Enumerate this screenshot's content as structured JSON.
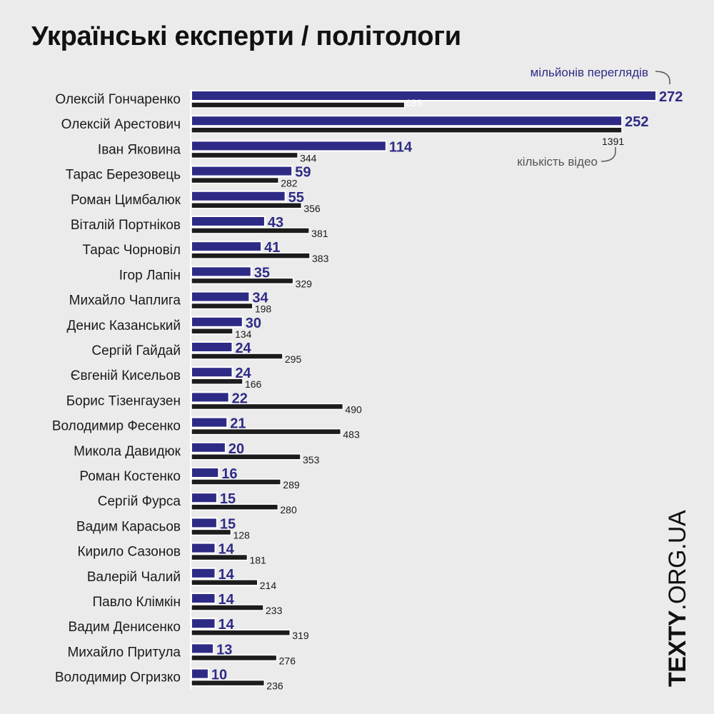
{
  "title": "Українські експерти / політологи",
  "brand": {
    "bold": "TEXTY",
    "rest": ".ORG.UA"
  },
  "chart_data": {
    "type": "bar",
    "orientation": "horizontal",
    "title": "Українські експерти / політологи",
    "categories": [
      "Олексій Гончаренко",
      "Олексій Арестович",
      "Іван Яковина",
      "Тарас Березовець",
      "Роман Цимбалюк",
      "Віталій Портніков",
      "Тарас Чорновіл",
      "Ігор Лапін",
      "Михайло Чаплига",
      "Денис Казанський",
      "Сергій Гайдай",
      "Євгеній Кисельов",
      "Борис Тізенгаузен",
      "Володимир Фесенко",
      "Микола Давидюк",
      "Роман Костенко",
      "Сергій Фурса",
      "Вадим Карасьов",
      "Кирило Сазонов",
      "Валерій Чалий",
      "Павло Клімкін",
      "Вадим Денисенко",
      "Михайло Притула",
      "Володимир Огризко"
    ],
    "series": [
      {
        "name": "мільйонів переглядів",
        "color": "#2e2b86",
        "values": [
          272,
          252,
          114,
          59,
          55,
          43,
          41,
          35,
          34,
          30,
          24,
          24,
          22,
          21,
          20,
          16,
          15,
          15,
          14,
          14,
          14,
          14,
          13,
          10
        ]
      },
      {
        "name": "кількість відео",
        "color": "#1c1c1c",
        "values": [
          689,
          1391,
          344,
          282,
          356,
          381,
          383,
          329,
          198,
          134,
          295,
          166,
          490,
          483,
          353,
          289,
          280,
          128,
          181,
          214,
          233,
          319,
          276,
          236
        ]
      }
    ],
    "grid": false,
    "legend": "annotations on top bars"
  }
}
